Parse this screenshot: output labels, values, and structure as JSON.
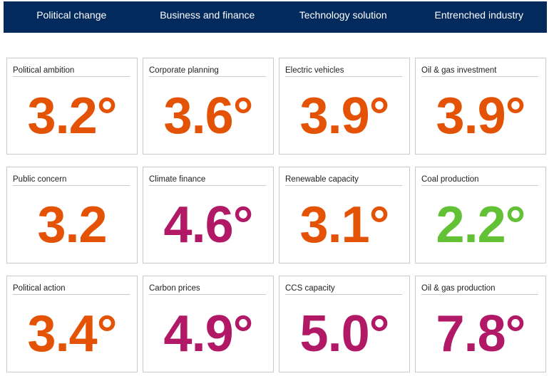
{
  "colors": {
    "header_bg": "#022a5c",
    "orange": "#e35205",
    "magenta": "#b11866",
    "green": "#62c135"
  },
  "header": {
    "columns": [
      "Political change",
      "Business and finance",
      "Technology solution",
      "Entrenched industry"
    ]
  },
  "cards": [
    {
      "label": "Political ambition",
      "value": "3.2°",
      "color": "#e35205"
    },
    {
      "label": "Corporate planning",
      "value": "3.6°",
      "color": "#e35205"
    },
    {
      "label": "Electric vehicles",
      "value": "3.9°",
      "color": "#e35205"
    },
    {
      "label": "Oil & gas investment",
      "value": "3.9°",
      "color": "#e35205"
    },
    {
      "label": "Public concern",
      "value": "3.2",
      "color": "#e35205"
    },
    {
      "label": "Climate finance",
      "value": "4.6°",
      "color": "#b11866"
    },
    {
      "label": "Renewable capacity",
      "value": "3.1°",
      "color": "#e35205"
    },
    {
      "label": "Coal production",
      "value": "2.2°",
      "color": "#62c135"
    },
    {
      "label": "Political action",
      "value": "3.4°",
      "color": "#e35205"
    },
    {
      "label": "Carbon prices",
      "value": "4.9°",
      "color": "#b11866"
    },
    {
      "label": "CCS capacity",
      "value": "5.0°",
      "color": "#b11866"
    },
    {
      "label": "Oil & gas production",
      "value": "7.8°",
      "color": "#b11866"
    }
  ]
}
